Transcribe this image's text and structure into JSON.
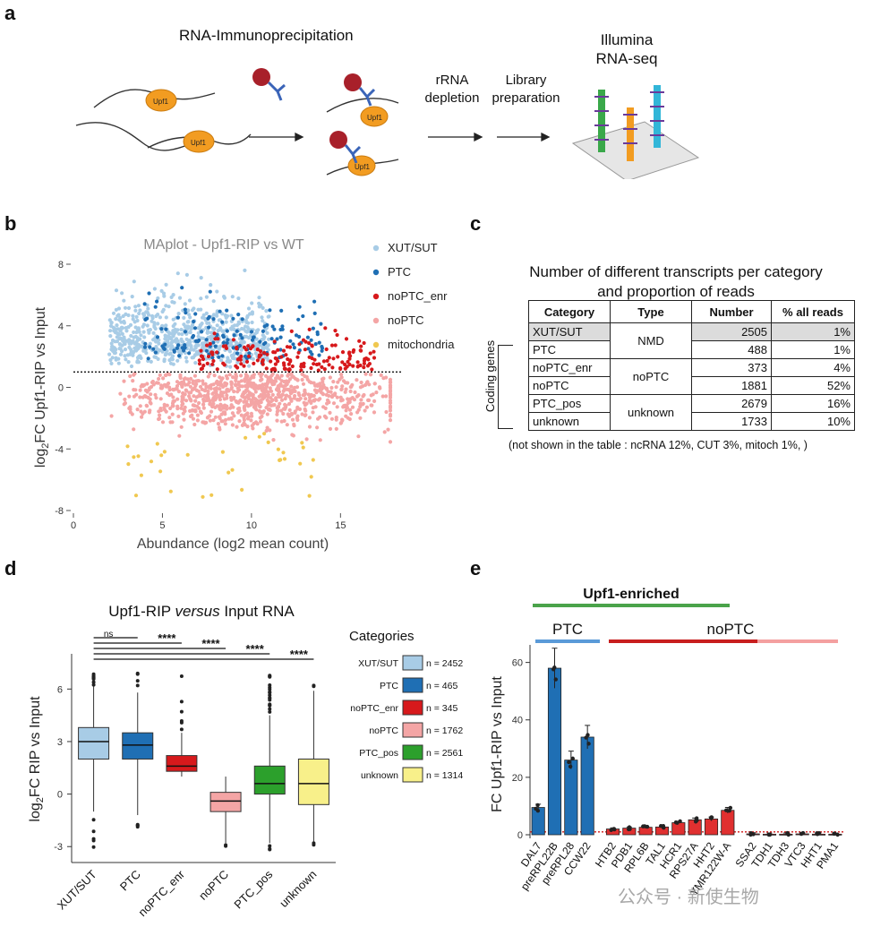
{
  "panel_a": {
    "letter": "a",
    "title": "RNA-Immunoprecipitation",
    "upf1_label": "Upf1",
    "step1_line1": "rRNA",
    "step1_line2": "depletion",
    "step2_line1": "Library",
    "step2_line2": "preparation",
    "seq_line1": "Illumina",
    "seq_line2": "RNA-seq"
  },
  "panel_b": {
    "letter": "b",
    "chart_data": {
      "type": "scatter",
      "title": "MAplot - Upf1-RIP vs WT",
      "xlabel": "Abundance (log2 mean count)",
      "ylabel_main": "log",
      "ylabel_sub": "2",
      "ylabel_rest": "FC Upf1-RIP vs Input",
      "xlim": [
        0,
        18
      ],
      "ylim": [
        -8,
        8
      ],
      "xticks": [
        "0",
        "5",
        "10",
        "15"
      ],
      "yticks": [
        "8",
        "4",
        "0",
        "-4",
        "-8"
      ],
      "threshold_y": 1,
      "legend_position": "right",
      "series": [
        {
          "name": "XUT/SUT",
          "color": "#a8cce6"
        },
        {
          "name": "PTC",
          "color": "#1f6fb4"
        },
        {
          "name": "noPTC_enr",
          "color": "#d7191c"
        },
        {
          "name": "noPTC",
          "color": "#f4a5a5"
        },
        {
          "name": "mitochondria",
          "color": "#f0c850"
        }
      ]
    }
  },
  "panel_c": {
    "letter": "c",
    "title_line1": "Number of different transcripts per category",
    "title_line2": "and proportion of reads",
    "headers": [
      "Category",
      "Type",
      "Number",
      "% all reads"
    ],
    "side_label": "Coding genes",
    "rows": [
      {
        "category": "XUT/SUT",
        "number": "2505",
        "pct": "1%"
      },
      {
        "category": "PTC",
        "number": "488",
        "pct": "1%"
      },
      {
        "category": "noPTC_enr",
        "number": "373",
        "pct": "4%"
      },
      {
        "category": "noPTC",
        "number": "1881",
        "pct": "52%"
      },
      {
        "category": "PTC_pos",
        "number": "2679",
        "pct": "16%"
      },
      {
        "category": "unknown",
        "number": "1733",
        "pct": "10%"
      }
    ],
    "types": [
      "NMD",
      "noPTC",
      "unknown"
    ],
    "footnote": "(not shown in the table : ncRNA 12%, CUT 3%, mitoch 1%, )"
  },
  "panel_d": {
    "letter": "d",
    "chart_data": {
      "type": "box",
      "title_part1": "Upf1-RIP ",
      "title_part2": "versus",
      "title_part3": " Input RNA",
      "ylabel_main": "log",
      "ylabel_sub": "2",
      "ylabel_rest": "FC RIP vs Input",
      "ylim": [
        -3.5,
        7.5
      ],
      "yticks": [
        "6",
        "3",
        "0",
        "-3"
      ],
      "categories": [
        "XUT/SUT",
        "PTC",
        "noPTC_enr",
        "noPTC",
        "PTC_pos",
        "unknown"
      ],
      "boxes": [
        {
          "name": "XUT/SUT",
          "color": "#a8cce6",
          "min": -1.0,
          "q1": 2.0,
          "median": 3.0,
          "q3": 3.8,
          "max": 6.2
        },
        {
          "name": "PTC",
          "color": "#1f6fb4",
          "min": -1.2,
          "q1": 2.0,
          "median": 2.8,
          "q3": 3.5,
          "max": 5.8
        },
        {
          "name": "noPTC_enr",
          "color": "#d7191c",
          "min": 1.0,
          "q1": 1.3,
          "median": 1.6,
          "q3": 2.2,
          "max": 3.5
        },
        {
          "name": "noPTC",
          "color": "#f4a5a5",
          "min": -2.8,
          "q1": -1.0,
          "median": -0.4,
          "q3": 0.1,
          "max": 1.0
        },
        {
          "name": "PTC_pos",
          "color": "#2ca02c",
          "min": -2.8,
          "q1": 0.0,
          "median": 0.6,
          "q3": 1.6,
          "max": 4.5
        },
        {
          "name": "unknown",
          "color": "#f8f08a",
          "min": -2.8,
          "q1": -0.6,
          "median": 0.6,
          "q3": 2.0,
          "max": 5.9
        }
      ],
      "significance": [
        "ns",
        "****",
        "****",
        "****",
        "****"
      ],
      "legend_title": "Categories",
      "legend": [
        {
          "name": "XUT/SUT",
          "n": "n = 2452"
        },
        {
          "name": "PTC",
          "n": "n = 465"
        },
        {
          "name": "noPTC_enr",
          "n": "n = 345"
        },
        {
          "name": "noPTC",
          "n": "n = 1762"
        },
        {
          "name": "PTC_pos",
          "n": "n = 2561"
        },
        {
          "name": "unknown",
          "n": "n = 1314"
        }
      ]
    }
  },
  "panel_e": {
    "letter": "e",
    "enriched_label": "Upf1-enriched",
    "ptc_label": "PTC",
    "noptc_label": "noPTC",
    "chart_data": {
      "type": "bar",
      "ylabel": "FC Upf1-RIP vs Input",
      "ylim": [
        0,
        63
      ],
      "yticks": [
        "0",
        "20",
        "40",
        "60"
      ],
      "threshold_y": 1,
      "categories": [
        "DAL7",
        "preRPL22B",
        "preRPL28",
        "CCW22",
        "HTB2",
        "PDB1",
        "RPL6B",
        "TAL1",
        "HCR1",
        "RPS27A",
        "HHT2",
        "YMR122W-A",
        "SSA2",
        "TDH1",
        "TDH3",
        "VTC3",
        "HHT1",
        "PMA1"
      ],
      "values": [
        9.5,
        58,
        26,
        34,
        2,
        2.3,
        2.6,
        2.7,
        4.2,
        5.2,
        5.5,
        8.5,
        0.3,
        0.2,
        0.2,
        0.3,
        0.2,
        0.2
      ],
      "colors": [
        "#1f6fb4",
        "#1f6fb4",
        "#1f6fb4",
        "#1f6fb4",
        "#e03030",
        "#e03030",
        "#e03030",
        "#e03030",
        "#e03030",
        "#e03030",
        "#e03030",
        "#e03030",
        "#e03030",
        "#e03030",
        "#e03030",
        "#e03030",
        "#e03030",
        "#e03030"
      ]
    }
  },
  "watermark": "公众号 · 新使生物"
}
